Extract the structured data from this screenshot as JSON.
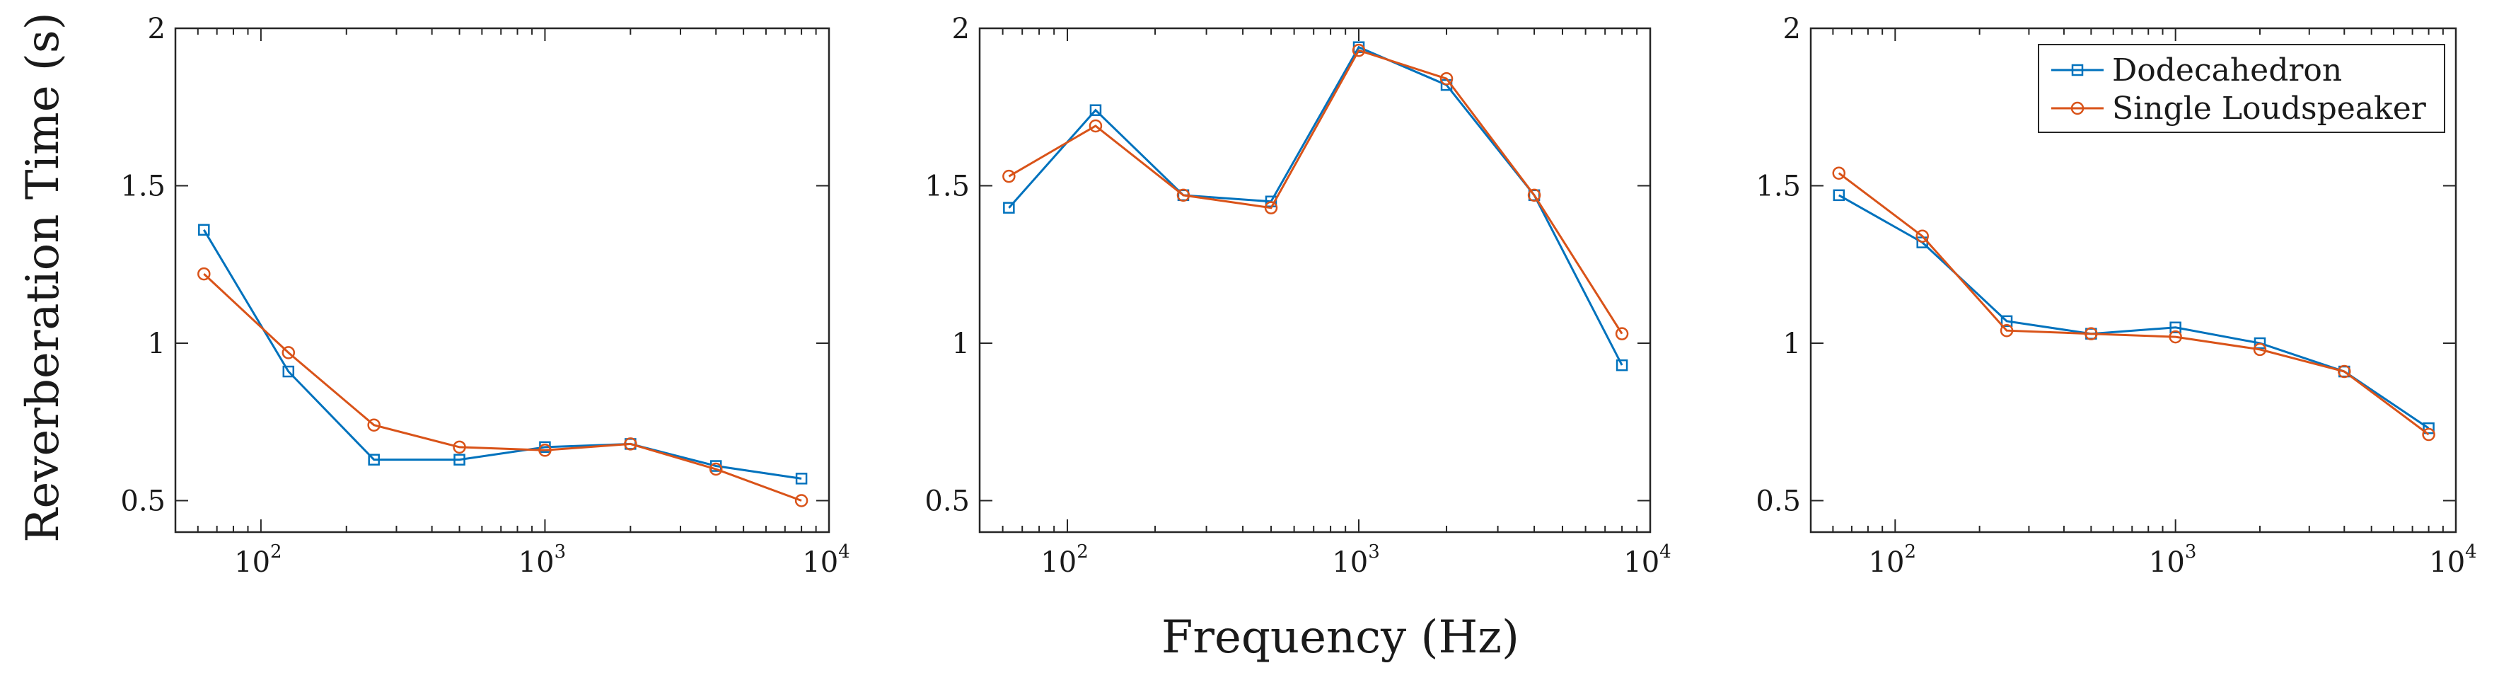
{
  "colors": {
    "dodecahedron": "#0072BD",
    "single": "#D95319"
  },
  "shared": {
    "ylabel": "Reverberation Time (s)",
    "xlabel": "Frequency (Hz)",
    "legend": [
      "Dodecahedron",
      "Single Loudspeaker"
    ],
    "legend_position": "top-right of third panel"
  },
  "chart_data": [
    {
      "type": "line",
      "xscale": "log",
      "xlim": [
        50,
        10000
      ],
      "ylim": [
        0.4,
        2.0
      ],
      "yticks": [
        0.5,
        1,
        1.5,
        2
      ],
      "ytick_labels": [
        "0.5",
        "1",
        "1.5",
        "2"
      ],
      "xticks": [
        {
          "value": 100,
          "base": "10",
          "exp": "2"
        },
        {
          "value": 1000,
          "base": "10",
          "exp": "3"
        },
        {
          "value": 10000,
          "base": "10",
          "exp": "4"
        }
      ],
      "x": [
        63,
        125,
        250,
        500,
        1000,
        2000,
        4000,
        8000
      ],
      "series": [
        {
          "name": "Dodecahedron",
          "marker": "square",
          "values": [
            1.36,
            0.91,
            0.63,
            0.63,
            0.67,
            0.68,
            0.61,
            0.57
          ]
        },
        {
          "name": "Single Loudspeaker",
          "marker": "circle",
          "values": [
            1.22,
            0.97,
            0.74,
            0.67,
            0.66,
            0.68,
            0.6,
            0.5
          ]
        }
      ]
    },
    {
      "type": "line",
      "xscale": "log",
      "xlim": [
        50,
        10000
      ],
      "ylim": [
        0.4,
        2.0
      ],
      "yticks": [
        0.5,
        1,
        1.5,
        2
      ],
      "ytick_labels": [
        "0.5",
        "1",
        "1.5",
        "2"
      ],
      "xticks": [
        {
          "value": 100,
          "base": "10",
          "exp": "2"
        },
        {
          "value": 1000,
          "base": "10",
          "exp": "3"
        },
        {
          "value": 10000,
          "base": "10",
          "exp": "4"
        }
      ],
      "x": [
        63,
        125,
        250,
        500,
        1000,
        2000,
        4000,
        8000
      ],
      "series": [
        {
          "name": "Dodecahedron",
          "marker": "square",
          "values": [
            1.43,
            1.74,
            1.47,
            1.45,
            1.94,
            1.82,
            1.47,
            0.93
          ]
        },
        {
          "name": "Single Loudspeaker",
          "marker": "circle",
          "values": [
            1.53,
            1.69,
            1.47,
            1.43,
            1.93,
            1.84,
            1.47,
            1.03
          ]
        }
      ]
    },
    {
      "type": "line",
      "xscale": "log",
      "xlim": [
        50,
        10000
      ],
      "ylim": [
        0.4,
        2.0
      ],
      "yticks": [
        0.5,
        1,
        1.5,
        2
      ],
      "ytick_labels": [
        "0.5",
        "1",
        "1.5",
        "2"
      ],
      "xticks": [
        {
          "value": 100,
          "base": "10",
          "exp": "2"
        },
        {
          "value": 1000,
          "base": "10",
          "exp": "3"
        },
        {
          "value": 10000,
          "base": "10",
          "exp": "4"
        }
      ],
      "x": [
        63,
        125,
        250,
        500,
        1000,
        2000,
        4000,
        8000
      ],
      "series": [
        {
          "name": "Dodecahedron",
          "marker": "square",
          "values": [
            1.47,
            1.32,
            1.07,
            1.03,
            1.05,
            1.0,
            0.91,
            0.73
          ]
        },
        {
          "name": "Single Loudspeaker",
          "marker": "circle",
          "values": [
            1.54,
            1.34,
            1.04,
            1.03,
            1.02,
            0.98,
            0.91,
            0.71
          ]
        }
      ]
    }
  ]
}
